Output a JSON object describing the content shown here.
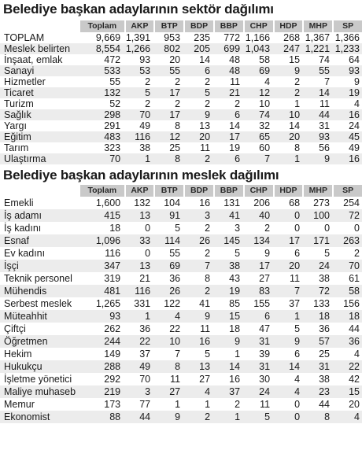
{
  "table1": {
    "title": "Belediye başkan adaylarının sektör dağılımı",
    "columns": [
      "Toplam",
      "AKP",
      "BTP",
      "BDP",
      "BBP",
      "CHP",
      "HDP",
      "MHP",
      "SP"
    ],
    "rows": [
      {
        "label": "TOPLAM",
        "values": [
          "9,669",
          "1,391",
          "953",
          "235",
          "772",
          "1,166",
          "268",
          "1,367",
          "1,366"
        ]
      },
      {
        "label": "Meslek belirten",
        "values": [
          "8,554",
          "1,266",
          "802",
          "205",
          "699",
          "1,043",
          "247",
          "1,221",
          "1,233"
        ]
      },
      {
        "label": "İnşaat, emlak",
        "values": [
          "472",
          "93",
          "20",
          "14",
          "48",
          "58",
          "15",
          "74",
          "64"
        ]
      },
      {
        "label": "Sanayi",
        "values": [
          "533",
          "53",
          "55",
          "6",
          "48",
          "69",
          "9",
          "55",
          "93"
        ]
      },
      {
        "label": "Hizmetler",
        "values": [
          "55",
          "2",
          "2",
          "2",
          "11",
          "4",
          "2",
          "7",
          "9"
        ]
      },
      {
        "label": "Ticaret",
        "values": [
          "132",
          "5",
          "17",
          "5",
          "21",
          "12",
          "2",
          "14",
          "19"
        ]
      },
      {
        "label": "Turizm",
        "values": [
          "52",
          "2",
          "2",
          "2",
          "2",
          "10",
          "1",
          "11",
          "4"
        ]
      },
      {
        "label": "Sağlık",
        "values": [
          "298",
          "70",
          "17",
          "9",
          "6",
          "74",
          "10",
          "44",
          "16"
        ]
      },
      {
        "label": "Yargı",
        "values": [
          "291",
          "49",
          "8",
          "13",
          "14",
          "32",
          "14",
          "31",
          "24"
        ]
      },
      {
        "label": "Eğitim",
        "values": [
          "483",
          "116",
          "12",
          "20",
          "17",
          "65",
          "20",
          "93",
          "45"
        ]
      },
      {
        "label": "Tarım",
        "values": [
          "323",
          "38",
          "25",
          "11",
          "19",
          "60",
          "8",
          "56",
          "49"
        ]
      },
      {
        "label": "Ulaştırma",
        "values": [
          "70",
          "1",
          "8",
          "2",
          "6",
          "7",
          "1",
          "9",
          "16"
        ]
      }
    ]
  },
  "table2": {
    "title": "Belediye başkan adaylarının meslek dağılımı",
    "columns": [
      "Toplam",
      "AKP",
      "BTP",
      "BDP",
      "BBP",
      "CHP",
      "HDP",
      "MHP",
      "SP"
    ],
    "rows": [
      {
        "label": "Emekli",
        "values": [
          "1,600",
          "132",
          "104",
          "16",
          "131",
          "206",
          "68",
          "273",
          "254"
        ]
      },
      {
        "label": "İş adamı",
        "values": [
          "415",
          "13",
          "91",
          "3",
          "41",
          "40",
          "0",
          "100",
          "72"
        ]
      },
      {
        "label": "İş kadını",
        "values": [
          "18",
          "0",
          "5",
          "2",
          "3",
          "2",
          "0",
          "0",
          "0"
        ]
      },
      {
        "label": "Esnaf",
        "values": [
          "1,096",
          "33",
          "114",
          "26",
          "145",
          "134",
          "17",
          "171",
          "263"
        ]
      },
      {
        "label": "Ev kadını",
        "values": [
          "116",
          "0",
          "55",
          "2",
          "5",
          "9",
          "6",
          "5",
          "2"
        ]
      },
      {
        "label": "İşçi",
        "values": [
          "347",
          "13",
          "69",
          "7",
          "38",
          "17",
          "20",
          "24",
          "70"
        ]
      },
      {
        "label": "Teknik personel",
        "values": [
          "319",
          "21",
          "36",
          "8",
          "43",
          "27",
          "11",
          "38",
          "61"
        ]
      },
      {
        "label": "Mühendis",
        "values": [
          "481",
          "116",
          "26",
          "2",
          "19",
          "83",
          "7",
          "72",
          "58"
        ]
      },
      {
        "label": "Serbest meslek",
        "values": [
          "1,265",
          "331",
          "122",
          "41",
          "85",
          "155",
          "37",
          "133",
          "156"
        ]
      },
      {
        "label": "Müteahhit",
        "values": [
          "93",
          "1",
          "4",
          "9",
          "15",
          "6",
          "1",
          "18",
          "18"
        ]
      },
      {
        "label": "Çiftçi",
        "values": [
          "262",
          "36",
          "22",
          "11",
          "18",
          "47",
          "5",
          "36",
          "44"
        ]
      },
      {
        "label": "Öğretmen",
        "values": [
          "244",
          "22",
          "10",
          "16",
          "9",
          "31",
          "9",
          "57",
          "36"
        ]
      },
      {
        "label": "Hekim",
        "values": [
          "149",
          "37",
          "7",
          "5",
          "1",
          "39",
          "6",
          "25",
          "4"
        ]
      },
      {
        "label": "Hukukçu",
        "values": [
          "288",
          "49",
          "8",
          "13",
          "14",
          "31",
          "14",
          "31",
          "22"
        ]
      },
      {
        "label": "İşletme yönetici",
        "values": [
          "292",
          "70",
          "11",
          "27",
          "16",
          "30",
          "4",
          "38",
          "42"
        ]
      },
      {
        "label": "Maliye muhaseb",
        "values": [
          "219",
          "3",
          "27",
          "4",
          "37",
          "24",
          "4",
          "23",
          "15"
        ]
      },
      {
        "label": "Memur",
        "values": [
          "173",
          "77",
          "1",
          "1",
          "2",
          "11",
          "0",
          "44",
          "20"
        ]
      },
      {
        "label": "Ekonomist",
        "values": [
          "88",
          "44",
          "9",
          "2",
          "1",
          "5",
          "0",
          "8",
          "4"
        ]
      }
    ]
  },
  "colors": {
    "header_bg": "#c9c9c9",
    "row_alt_bg": "#ececec",
    "text": "#1a1a1a"
  }
}
